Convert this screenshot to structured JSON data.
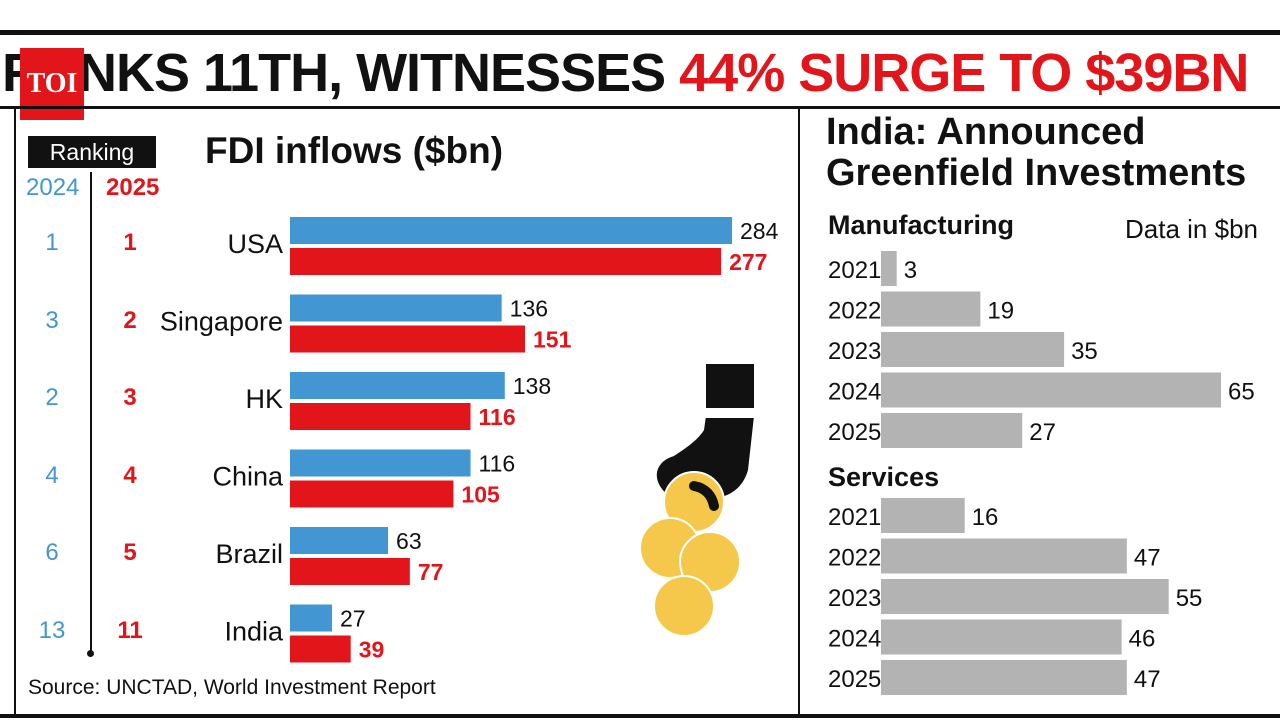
{
  "headline": {
    "text_black": "RANKS 11TH, WITNESSES ",
    "text_red": "44% SURGE TO $39BN"
  },
  "logo": "TOI",
  "ranking": {
    "title": "Ranking",
    "year_a": "2024",
    "year_b": "2025"
  },
  "source": "Source: UNCTAD, World Investment Report",
  "colors": {
    "blue": "#4296d2",
    "red": "#e2151b",
    "gray": "#b3b3b3",
    "coin": "#f5c84b"
  },
  "illustration": {
    "icon": "hand-dropping-coins-icon"
  },
  "chart_data": [
    {
      "type": "bar",
      "orientation": "horizontal",
      "title": "FDI inflows ($bn)",
      "categories": [
        "USA",
        "Singapore",
        "HK",
        "China",
        "Brazil",
        "India"
      ],
      "rank_2024": [
        "1",
        "3",
        "2",
        "4",
        "6",
        "13"
      ],
      "rank_2025": [
        "1",
        "2",
        "3",
        "4",
        "5",
        "11"
      ],
      "series": [
        {
          "values": [
            284,
            136,
            138,
            116,
            63,
            27
          ]
        },
        {
          "values": [
            277,
            151,
            116,
            105,
            77,
            39
          ]
        }
      ],
      "xlim": [
        0,
        300
      ],
      "grid": false
    },
    {
      "type": "bar",
      "orientation": "horizontal",
      "title_lines": [
        "India: Announced",
        "Greenfield Investments"
      ],
      "units": "Data in $bn",
      "panels": [
        {
          "name": "Manufacturing",
          "categories": [
            "2021",
            "2022",
            "2023",
            "2024",
            "2025"
          ],
          "values": [
            3,
            19,
            35,
            65,
            27
          ]
        },
        {
          "name": "Services",
          "categories": [
            "2021",
            "2022",
            "2023",
            "2024",
            "2025"
          ],
          "values": [
            16,
            47,
            55,
            46,
            47
          ]
        }
      ],
      "xlim": [
        0,
        70
      ],
      "grid": false
    }
  ]
}
